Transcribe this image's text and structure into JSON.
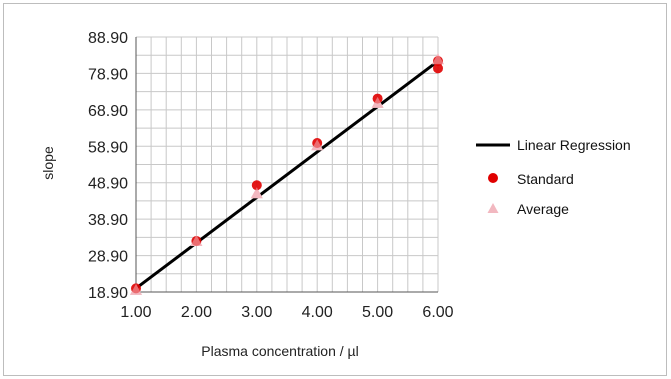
{
  "chart_data": {
    "type": "scatter",
    "xlabel": "Plasma concentration / µl",
    "ylabel": "slope",
    "xlim": [
      1.0,
      6.0
    ],
    "ylim": [
      18.9,
      88.9
    ],
    "x_ticks": [
      "1.00",
      "2.00",
      "3.00",
      "4.00",
      "5.00",
      "6.00"
    ],
    "y_ticks": [
      "18.90",
      "28.90",
      "38.90",
      "48.90",
      "58.90",
      "68.90",
      "78.90",
      "88.90"
    ],
    "grid": true,
    "legend_position": "right",
    "series": [
      {
        "name": "Linear Regression",
        "kind": "line",
        "color": "#000000",
        "x": [
          1.0,
          6.0
        ],
        "y": [
          19.9,
          82.3
        ]
      },
      {
        "name": "Standard",
        "kind": "marker-circle",
        "color": "#e00000",
        "x": [
          1.0,
          2.0,
          3.0,
          4.0,
          5.0,
          6.0,
          6.0
        ],
        "y": [
          19.9,
          32.9,
          48.2,
          59.8,
          72.0,
          82.3,
          80.3
        ]
      },
      {
        "name": "Average",
        "kind": "marker-triangle",
        "color": "#f2b8c0",
        "x": [
          1.0,
          2.0,
          3.0,
          4.0,
          5.0,
          6.0
        ],
        "y": [
          19.5,
          32.9,
          46.0,
          59.2,
          70.8,
          82.8
        ]
      }
    ]
  }
}
